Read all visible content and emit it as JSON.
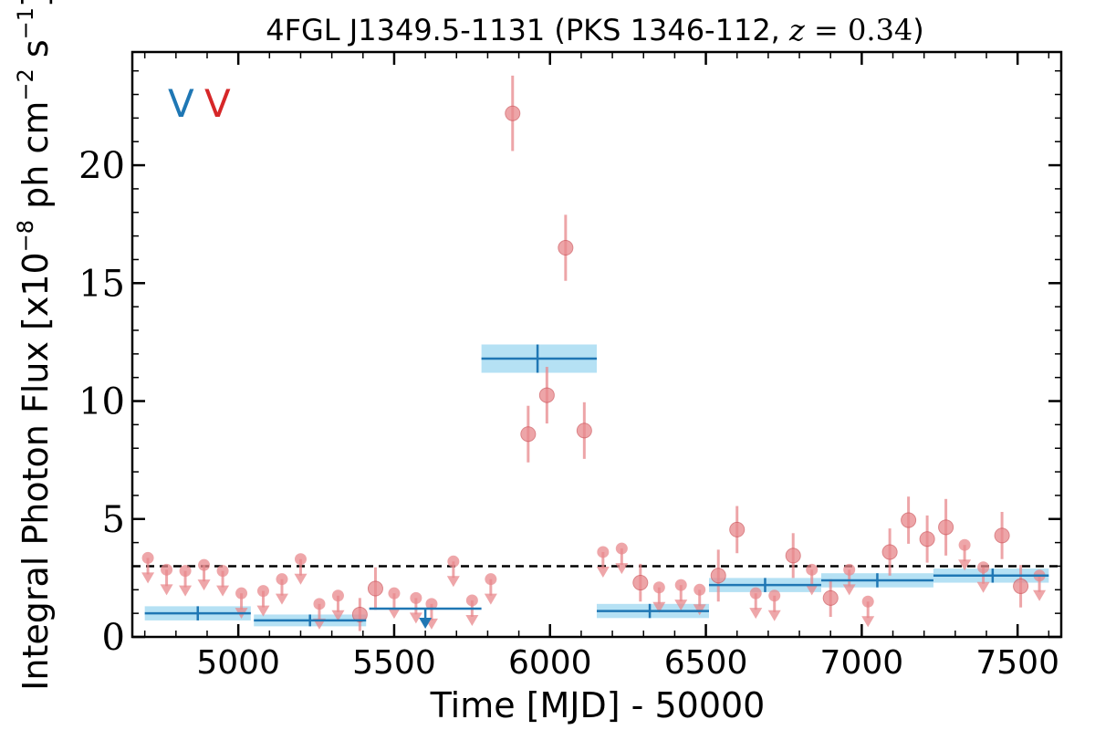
{
  "chart_data": {
    "type": "scatter",
    "title": {
      "prefix": "4FGL J1349.5-1131 (PKS 1346-112, ",
      "z_symbol": "z",
      "z_eq": " = 0.34",
      "suffix": ")"
    },
    "xlabel": "Time [MJD] - 50000",
    "ylabel": {
      "part1": "Integral Photon Flux [x10",
      "exp1": "−8",
      "part2": " ph cm",
      "exp2": "−2",
      "part3": " s",
      "exp3": "−1",
      "part4": "]"
    },
    "xlim": [
      4660,
      7640
    ],
    "ylim": [
      0,
      24.8
    ],
    "xticks": [
      5000,
      5500,
      6000,
      6500,
      7000,
      7500
    ],
    "xticklabels": [
      "5000",
      "5500",
      "6000",
      "6500",
      "7000",
      "7500"
    ],
    "yticks": [
      0,
      5,
      10,
      15,
      20
    ],
    "yticklabels": [
      "0",
      "5",
      "10",
      "15",
      "20"
    ],
    "grid": false,
    "legend_labels": [
      {
        "text": "V",
        "color": "#1f77b4"
      },
      {
        "text": "V",
        "color": "#d62728"
      }
    ],
    "reference_line": {
      "y": 3.0,
      "style": "dashed",
      "color": "#000000"
    },
    "colors": {
      "short_bins": "#e8888c",
      "long_bins": "#1f77b4",
      "long_bins_band": "#a8dcf2"
    },
    "series": [
      {
        "kind": "long_bins",
        "points": [
          {
            "x": 4870,
            "xlo": 4700,
            "xhi": 5040,
            "y": 1.0,
            "ylo": 0.7,
            "yhi": 1.3
          },
          {
            "x": 5230,
            "xlo": 5050,
            "xhi": 5410,
            "y": 0.7,
            "ylo": 0.45,
            "yhi": 0.95
          },
          {
            "x": 5600,
            "xlo": 5420,
            "xhi": 5780,
            "y": 1.2,
            "upper_limit": true
          },
          {
            "x": 5960,
            "xlo": 5780,
            "xhi": 6150,
            "y": 11.8,
            "ylo": 11.2,
            "yhi": 12.4
          },
          {
            "x": 6320,
            "xlo": 6150,
            "xhi": 6510,
            "y": 1.1,
            "ylo": 0.8,
            "yhi": 1.4
          },
          {
            "x": 6690,
            "xlo": 6510,
            "xhi": 6870,
            "y": 2.2,
            "ylo": 1.9,
            "yhi": 2.5
          },
          {
            "x": 7050,
            "xlo": 6870,
            "xhi": 7230,
            "y": 2.4,
            "ylo": 2.1,
            "yhi": 2.7
          },
          {
            "x": 7420,
            "xlo": 7230,
            "xhi": 7600,
            "y": 2.6,
            "ylo": 2.3,
            "yhi": 2.9
          }
        ]
      },
      {
        "kind": "short_bins",
        "points": [
          {
            "x": 4710,
            "y": 3.35,
            "upper_limit": true
          },
          {
            "x": 4770,
            "y": 2.85,
            "upper_limit": true
          },
          {
            "x": 4830,
            "y": 2.8,
            "upper_limit": true
          },
          {
            "x": 4890,
            "y": 3.05,
            "upper_limit": true
          },
          {
            "x": 4950,
            "y": 2.8,
            "upper_limit": true
          },
          {
            "x": 5010,
            "y": 1.85,
            "upper_limit": true
          },
          {
            "x": 5080,
            "y": 1.95,
            "upper_limit": true
          },
          {
            "x": 5140,
            "y": 2.45,
            "upper_limit": true
          },
          {
            "x": 5200,
            "y": 3.3,
            "upper_limit": true
          },
          {
            "x": 5260,
            "y": 1.4,
            "upper_limit": true
          },
          {
            "x": 5320,
            "y": 1.75,
            "upper_limit": true
          },
          {
            "x": 5390,
            "y": 0.95,
            "ylo": 0.25,
            "yhi": 1.65
          },
          {
            "x": 5440,
            "y": 2.05,
            "ylo": 1.15,
            "yhi": 2.95
          },
          {
            "x": 5500,
            "y": 1.85,
            "upper_limit": true
          },
          {
            "x": 5570,
            "y": 1.65,
            "upper_limit": true
          },
          {
            "x": 5620,
            "y": 1.4,
            "upper_limit": true
          },
          {
            "x": 5690,
            "y": 3.2,
            "upper_limit": true
          },
          {
            "x": 5750,
            "y": 1.55,
            "upper_limit": true
          },
          {
            "x": 5810,
            "y": 2.45,
            "upper_limit": true
          },
          {
            "x": 5880,
            "y": 22.2,
            "ylo": 20.6,
            "yhi": 23.8
          },
          {
            "x": 5930,
            "y": 8.6,
            "ylo": 7.4,
            "yhi": 9.8
          },
          {
            "x": 5990,
            "y": 10.25,
            "ylo": 9.05,
            "yhi": 11.45
          },
          {
            "x": 6050,
            "y": 16.5,
            "ylo": 15.1,
            "yhi": 17.9
          },
          {
            "x": 6110,
            "y": 8.75,
            "ylo": 7.55,
            "yhi": 9.95
          },
          {
            "x": 6170,
            "y": 3.6,
            "upper_limit": true
          },
          {
            "x": 6230,
            "y": 3.75,
            "upper_limit": true
          },
          {
            "x": 6290,
            "y": 2.3,
            "ylo": 1.5,
            "yhi": 3.1
          },
          {
            "x": 6350,
            "y": 2.1,
            "upper_limit": true
          },
          {
            "x": 6420,
            "y": 2.2,
            "upper_limit": true
          },
          {
            "x": 6480,
            "y": 2.0,
            "upper_limit": true
          },
          {
            "x": 6540,
            "y": 2.6,
            "ylo": 1.5,
            "yhi": 3.7
          },
          {
            "x": 6600,
            "y": 4.55,
            "ylo": 3.55,
            "yhi": 5.55
          },
          {
            "x": 6660,
            "y": 1.85,
            "upper_limit": true
          },
          {
            "x": 6720,
            "y": 1.75,
            "upper_limit": true
          },
          {
            "x": 6780,
            "y": 3.45,
            "ylo": 2.5,
            "yhi": 4.4
          },
          {
            "x": 6840,
            "y": 2.85,
            "upper_limit": true
          },
          {
            "x": 6900,
            "y": 1.65,
            "ylo": 0.85,
            "yhi": 2.45
          },
          {
            "x": 6960,
            "y": 2.85,
            "upper_limit": true
          },
          {
            "x": 7020,
            "y": 1.5,
            "upper_limit": true
          },
          {
            "x": 7090,
            "y": 3.6,
            "ylo": 2.6,
            "yhi": 4.6
          },
          {
            "x": 7150,
            "y": 4.95,
            "ylo": 3.95,
            "yhi": 5.95
          },
          {
            "x": 7210,
            "y": 4.15,
            "ylo": 3.15,
            "yhi": 5.15
          },
          {
            "x": 7270,
            "y": 4.65,
            "ylo": 3.45,
            "yhi": 5.85
          },
          {
            "x": 7330,
            "y": 3.9,
            "upper_limit": true
          },
          {
            "x": 7390,
            "y": 2.95,
            "upper_limit": true
          },
          {
            "x": 7450,
            "y": 4.3,
            "ylo": 3.3,
            "yhi": 5.3
          },
          {
            "x": 7510,
            "y": 2.15,
            "ylo": 1.25,
            "yhi": 3.05
          },
          {
            "x": 7570,
            "y": 2.6,
            "upper_limit": true
          }
        ]
      }
    ]
  }
}
